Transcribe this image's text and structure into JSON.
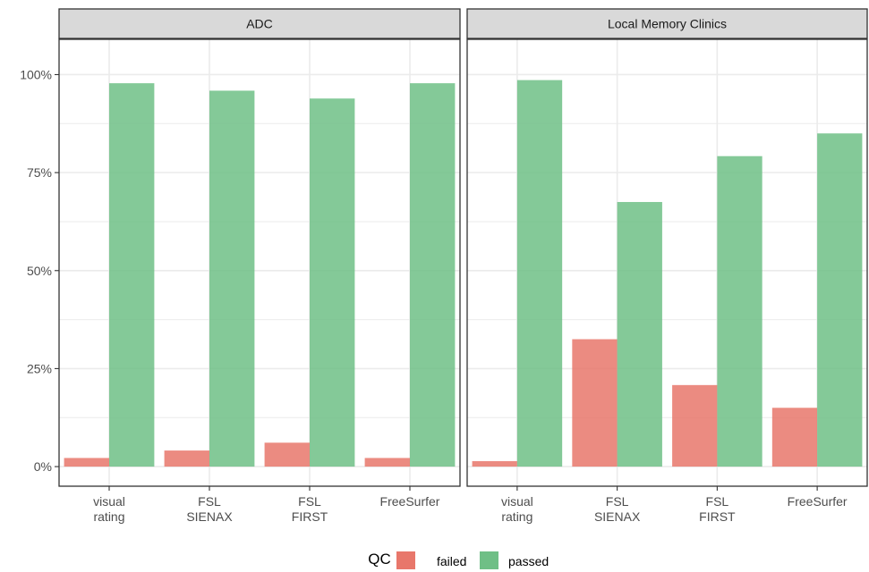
{
  "chart_data": {
    "type": "bar",
    "categories": [
      [
        "visual",
        "rating"
      ],
      [
        "FSL",
        "SIENAX"
      ],
      [
        "FSL",
        "FIRST"
      ],
      [
        "FreeSurfer"
      ]
    ],
    "y_ticks": [
      0,
      25,
      50,
      75,
      100
    ],
    "y_tick_labels": [
      "0%",
      "25%",
      "50%",
      "75%",
      "100%"
    ],
    "ylim": [
      -5,
      109
    ],
    "grid": true,
    "legend": {
      "title": "QC",
      "position": "bottom",
      "entries": [
        {
          "label": "failed",
          "color": "#E8776B"
        },
        {
          "label": "passed",
          "color": "#6FBF86"
        }
      ]
    },
    "panels": [
      {
        "title": "ADC",
        "series": [
          {
            "name": "failed",
            "values": [
              2.2,
              4.1,
              6.1,
              2.2
            ]
          },
          {
            "name": "passed",
            "values": [
              97.8,
              95.9,
              93.9,
              97.8
            ]
          }
        ]
      },
      {
        "title": "Local Memory Clinics",
        "series": [
          {
            "name": "failed",
            "values": [
              1.4,
              32.5,
              20.8,
              15.0
            ]
          },
          {
            "name": "passed",
            "values": [
              98.6,
              67.5,
              79.2,
              85.0
            ]
          }
        ]
      }
    ]
  }
}
